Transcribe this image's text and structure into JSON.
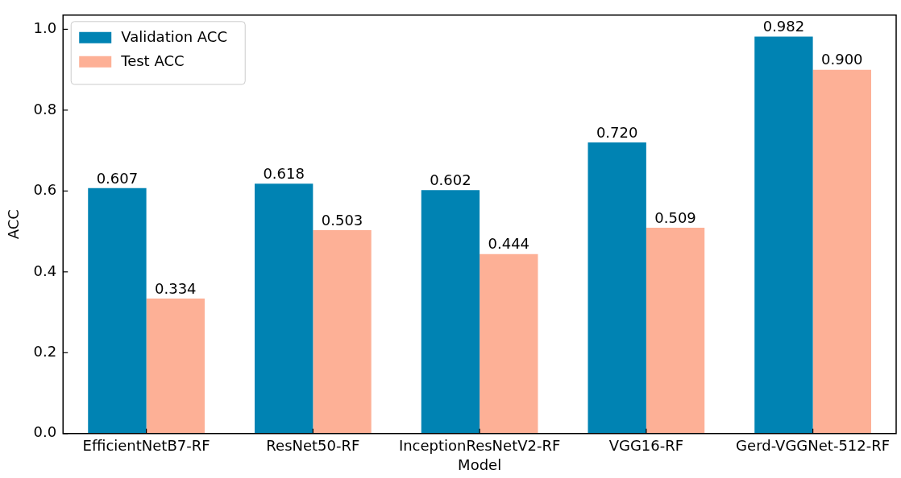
{
  "chart_data": {
    "type": "bar",
    "xlabel": "Model",
    "ylabel": "ACC",
    "categories": [
      "EfficientNetB7-RF",
      "ResNet50-RF",
      "InceptionResNetV2-RF",
      "VGG16-RF",
      "Gerd-VGGNet-512-RF"
    ],
    "series": [
      {
        "name": "Validation ACC",
        "color": "#0083b3",
        "values": [
          0.607,
          0.618,
          0.602,
          0.72,
          0.982
        ],
        "value_labels": [
          "0.607",
          "0.618",
          "0.602",
          "0.720",
          "0.982"
        ]
      },
      {
        "name": "Test ACC",
        "color": "#fdb096",
        "values": [
          0.334,
          0.503,
          0.444,
          0.509,
          0.9
        ],
        "value_labels": [
          "0.334",
          "0.503",
          "0.444",
          "0.509",
          "0.900"
        ]
      }
    ],
    "grid": false,
    "legend": "top left",
    "ylim": [
      0,
      1.035
    ],
    "yticks": [
      {
        "value": 0,
        "label": "0.0"
      },
      {
        "value": 0.2,
        "label": "0.2"
      },
      {
        "value": 0.4,
        "label": "0.4"
      },
      {
        "value": 0.6,
        "label": "0.6"
      },
      {
        "value": 0.8,
        "label": "0.8"
      },
      {
        "value": 1,
        "label": "1.0"
      }
    ]
  }
}
